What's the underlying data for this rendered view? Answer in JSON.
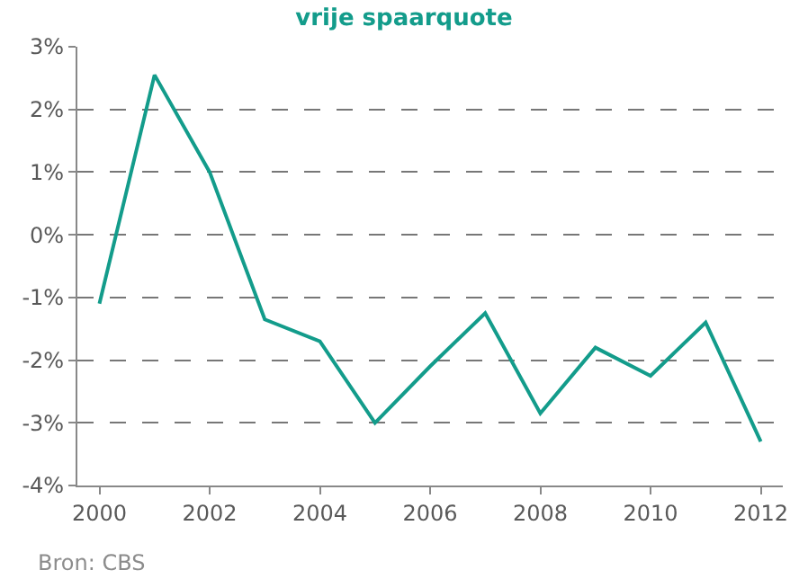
{
  "chart_data": {
    "type": "line",
    "title": "vrije spaarquote",
    "x": [
      2000,
      2001,
      2002,
      2003,
      2004,
      2005,
      2006,
      2007,
      2008,
      2009,
      2010,
      2011,
      2012
    ],
    "series": [
      {
        "color": "#139c8b",
        "values": [
          -1.1,
          2.55,
          1.0,
          -1.35,
          -1.7,
          -3.0,
          -2.1,
          -1.25,
          -2.85,
          -1.8,
          -2.25,
          -1.4,
          -3.3
        ]
      }
    ],
    "xlim": [
      1999.6,
      2012.4
    ],
    "xticks": [
      2000,
      2002,
      2004,
      2006,
      2008,
      2010,
      2012
    ],
    "ylim": [
      -4,
      3
    ],
    "yticks": [
      {
        "value": -4,
        "label": "-4%"
      },
      {
        "value": -3,
        "label": "-3%"
      },
      {
        "value": -2,
        "label": "-2%"
      },
      {
        "value": -1,
        "label": "-1%"
      },
      {
        "value": 0,
        "label": "0%"
      },
      {
        "value": 1,
        "label": "1%"
      },
      {
        "value": 2,
        "label": "2%"
      },
      {
        "value": 3,
        "label": "3%"
      }
    ],
    "grid": "y",
    "marker": "none",
    "line_style": "solid",
    "annotations": [
      "Bron: CBS"
    ]
  }
}
